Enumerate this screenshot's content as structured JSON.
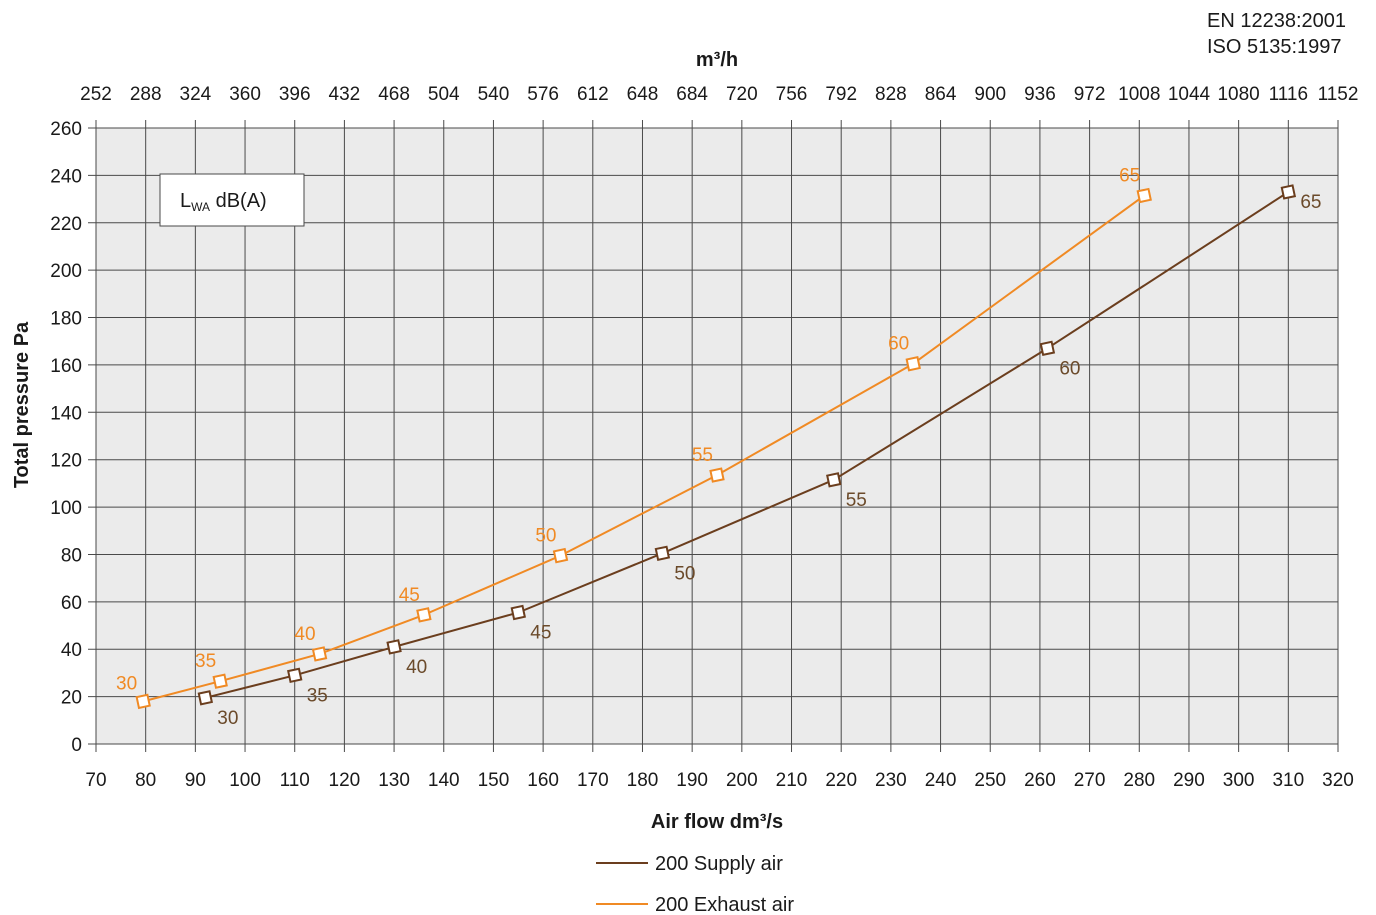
{
  "standards": [
    "EN 12238:2001",
    "ISO 5135:1997"
  ],
  "noise_box": {
    "main": "L",
    "sub": "WA",
    "unit": " dB(A)"
  },
  "colors": {
    "supply": "#6b3e1e",
    "exhaust": "#f08a24",
    "grid": "#4a4a4a",
    "plot_bg": "#ebebeb",
    "label_supply": "#6b4a2a",
    "label_exhaust": "#f08a24"
  },
  "chart_data": {
    "type": "line",
    "title": "",
    "xlabel": "Air flow dm³/s",
    "ylabel": "Total pressure Pa",
    "x2label": "m³/h",
    "xlim": [
      70,
      320
    ],
    "ylim": [
      0,
      260
    ],
    "x_ticks": [
      "70",
      "80",
      "90",
      "100",
      "110",
      "120",
      "130",
      "140",
      "150",
      "160",
      "170",
      "180",
      "190",
      "200",
      "210",
      "220",
      "230",
      "240",
      "250",
      "260",
      "270",
      "280",
      "290",
      "300",
      "310",
      "320"
    ],
    "y_ticks": [
      "0",
      "20",
      "40",
      "60",
      "80",
      "100",
      "120",
      "140",
      "160",
      "180",
      "200",
      "220",
      "240",
      "260"
    ],
    "x2_ticks": [
      "252",
      "288",
      "324",
      "360",
      "396",
      "432",
      "468",
      "504",
      "540",
      "576",
      "612",
      "648",
      "684",
      "720",
      "756",
      "792",
      "828",
      "864",
      "900",
      "936",
      "972",
      "1008",
      "1044",
      "1080",
      "1116",
      "1152"
    ],
    "grid": true,
    "legend_position": "bottom-center",
    "series": [
      {
        "name": "200 Supply air",
        "points": [
          {
            "x": 92,
            "y": 19.5,
            "label": "30"
          },
          {
            "x": 110,
            "y": 29,
            "label": "35"
          },
          {
            "x": 130,
            "y": 41,
            "label": "40"
          },
          {
            "x": 155,
            "y": 55.5,
            "label": "45"
          },
          {
            "x": 184,
            "y": 80.5,
            "label": "50"
          },
          {
            "x": 218.5,
            "y": 111.5,
            "label": "55"
          },
          {
            "x": 261.5,
            "y": 167,
            "label": "60"
          },
          {
            "x": 310,
            "y": 233,
            "label": "65"
          }
        ]
      },
      {
        "name": "200 Exhaust air",
        "points": [
          {
            "x": 79.5,
            "y": 18,
            "label": "30"
          },
          {
            "x": 95,
            "y": 26.5,
            "label": "35"
          },
          {
            "x": 115,
            "y": 38,
            "label": "40"
          },
          {
            "x": 136,
            "y": 54.5,
            "label": "45"
          },
          {
            "x": 163.5,
            "y": 79.5,
            "label": "50"
          },
          {
            "x": 195,
            "y": 113.5,
            "label": "55"
          },
          {
            "x": 234.5,
            "y": 160.5,
            "label": "60"
          },
          {
            "x": 281,
            "y": 231.5,
            "label": "65"
          }
        ]
      }
    ]
  }
}
